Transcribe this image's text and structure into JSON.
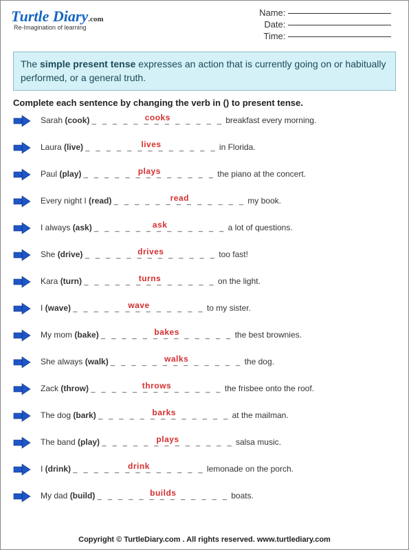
{
  "logo": {
    "brand": "Turtle Diary",
    "suffix": ".com",
    "tagline": "Re-Imagination of learning"
  },
  "header_blanks": [
    {
      "label": "Name:"
    },
    {
      "label": "Date:"
    },
    {
      "label": "Time:"
    }
  ],
  "instruction": {
    "prefix": "The ",
    "bold": "simple present tense",
    "suffix": " expresses an action that is currently going on or habitually performed, or a general truth."
  },
  "task": "Complete each sentence by changing the verb in () to present tense.",
  "arrow_color": "#1e56c8",
  "answer_color": "#d32f2f",
  "questions": [
    {
      "before": "Sarah ",
      "verb": "(cook)",
      "answer": "cooks",
      "after": " breakfast every morning."
    },
    {
      "before": "Laura ",
      "verb": "(live)",
      "answer": "lives",
      "after": " in Florida."
    },
    {
      "before": "Paul ",
      "verb": "(play)",
      "answer": "plays",
      "after": " the piano at the concert."
    },
    {
      "before": "Every night I ",
      "verb": "(read)",
      "answer": "read",
      "after": " my book."
    },
    {
      "before": "I always ",
      "verb": "(ask)",
      "answer": "ask",
      "after": " a lot of questions."
    },
    {
      "before": "She ",
      "verb": "(drive)",
      "answer": "drives",
      "after": "  too fast!"
    },
    {
      "before": "Kara ",
      "verb": "(turn)",
      "answer": "turns",
      "after": " on the light."
    },
    {
      "before": "I ",
      "verb": "(wave)",
      "answer": "wave",
      "after": " to my sister."
    },
    {
      "before": "My mom ",
      "verb": "(bake)",
      "answer": "bakes",
      "after": " the best brownies."
    },
    {
      "before": "She always ",
      "verb": "(walk)",
      "answer": "walks",
      "after": " the dog."
    },
    {
      "before": "Zack ",
      "verb": "(throw)",
      "answer": "throws",
      "after": " the frisbee onto the roof."
    },
    {
      "before": "The dog ",
      "verb": "(bark)",
      "answer": "barks",
      "after": "  at the mailman."
    },
    {
      "before": "The band ",
      "verb": "(play)",
      "answer": "plays",
      "after": " salsa music."
    },
    {
      "before": "I ",
      "verb": "(drink)",
      "answer": "drink",
      "after": " lemonade on the porch."
    },
    {
      "before": "My dad ",
      "verb": "(build)",
      "answer": "builds",
      "after": " boats."
    }
  ],
  "blank_pattern": "_ _ _ _ _ _ _ _ _ _ _ _ _",
  "footer": "Copyright © TurtleDiary.com . All rights reserved. www.turtlediary.com"
}
